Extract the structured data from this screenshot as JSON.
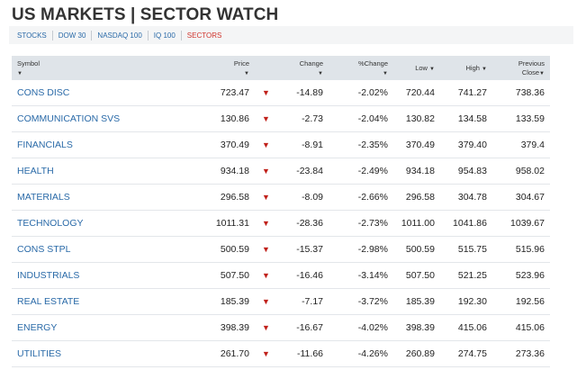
{
  "header": {
    "title": "US MARKETS | SECTOR WATCH"
  },
  "tabs": [
    {
      "label": "STOCKS"
    },
    {
      "label": "DOW 30"
    },
    {
      "label": "NASDAQ 100"
    },
    {
      "label": "IQ 100"
    },
    {
      "label": "SECTORS"
    }
  ],
  "active_tab": "SECTORS",
  "table": {
    "columns": {
      "symbol": "Symbol",
      "price": "Price",
      "change": "Change",
      "pct_change": "%Change",
      "low": "Low",
      "high": "High",
      "prev_close_line1": "Previous",
      "prev_close_line2": "Close"
    },
    "sort_icon": "▼",
    "down_icon": "▼",
    "rows": [
      {
        "name": "CONS DISC",
        "price": "723.47",
        "change": "-14.89",
        "pct": "-2.02%",
        "low": "720.44",
        "high": "741.27",
        "prev": "738.36"
      },
      {
        "name": "COMMUNICATION SVS",
        "price": "130.86",
        "change": "-2.73",
        "pct": "-2.04%",
        "low": "130.82",
        "high": "134.58",
        "prev": "133.59"
      },
      {
        "name": "FINANCIALS",
        "price": "370.49",
        "change": "-8.91",
        "pct": "-2.35%",
        "low": "370.49",
        "high": "379.40",
        "prev": "379.4"
      },
      {
        "name": "HEALTH",
        "price": "934.18",
        "change": "-23.84",
        "pct": "-2.49%",
        "low": "934.18",
        "high": "954.83",
        "prev": "958.02"
      },
      {
        "name": "MATERIALS",
        "price": "296.58",
        "change": "-8.09",
        "pct": "-2.66%",
        "low": "296.58",
        "high": "304.78",
        "prev": "304.67"
      },
      {
        "name": "TECHNOLOGY",
        "price": "1011.31",
        "change": "-28.36",
        "pct": "-2.73%",
        "low": "1011.00",
        "high": "1041.86",
        "prev": "1039.67"
      },
      {
        "name": "CONS STPL",
        "price": "500.59",
        "change": "-15.37",
        "pct": "-2.98%",
        "low": "500.59",
        "high": "515.75",
        "prev": "515.96"
      },
      {
        "name": "INDUSTRIALS",
        "price": "507.50",
        "change": "-16.46",
        "pct": "-3.14%",
        "low": "507.50",
        "high": "521.25",
        "prev": "523.96"
      },
      {
        "name": "REAL ESTATE",
        "price": "185.39",
        "change": "-7.17",
        "pct": "-3.72%",
        "low": "185.39",
        "high": "192.30",
        "prev": "192.56"
      },
      {
        "name": "ENERGY",
        "price": "398.39",
        "change": "-16.67",
        "pct": "-4.02%",
        "low": "398.39",
        "high": "415.06",
        "prev": "415.06"
      },
      {
        "name": "UTILITIES",
        "price": "261.70",
        "change": "-11.66",
        "pct": "-4.26%",
        "low": "260.89",
        "high": "274.75",
        "prev": "273.36"
      }
    ]
  },
  "colors": {
    "link": "#2a6aa8",
    "active": "#d0342c",
    "down": "#c0201a",
    "header_bg": "#dfe4e9"
  }
}
